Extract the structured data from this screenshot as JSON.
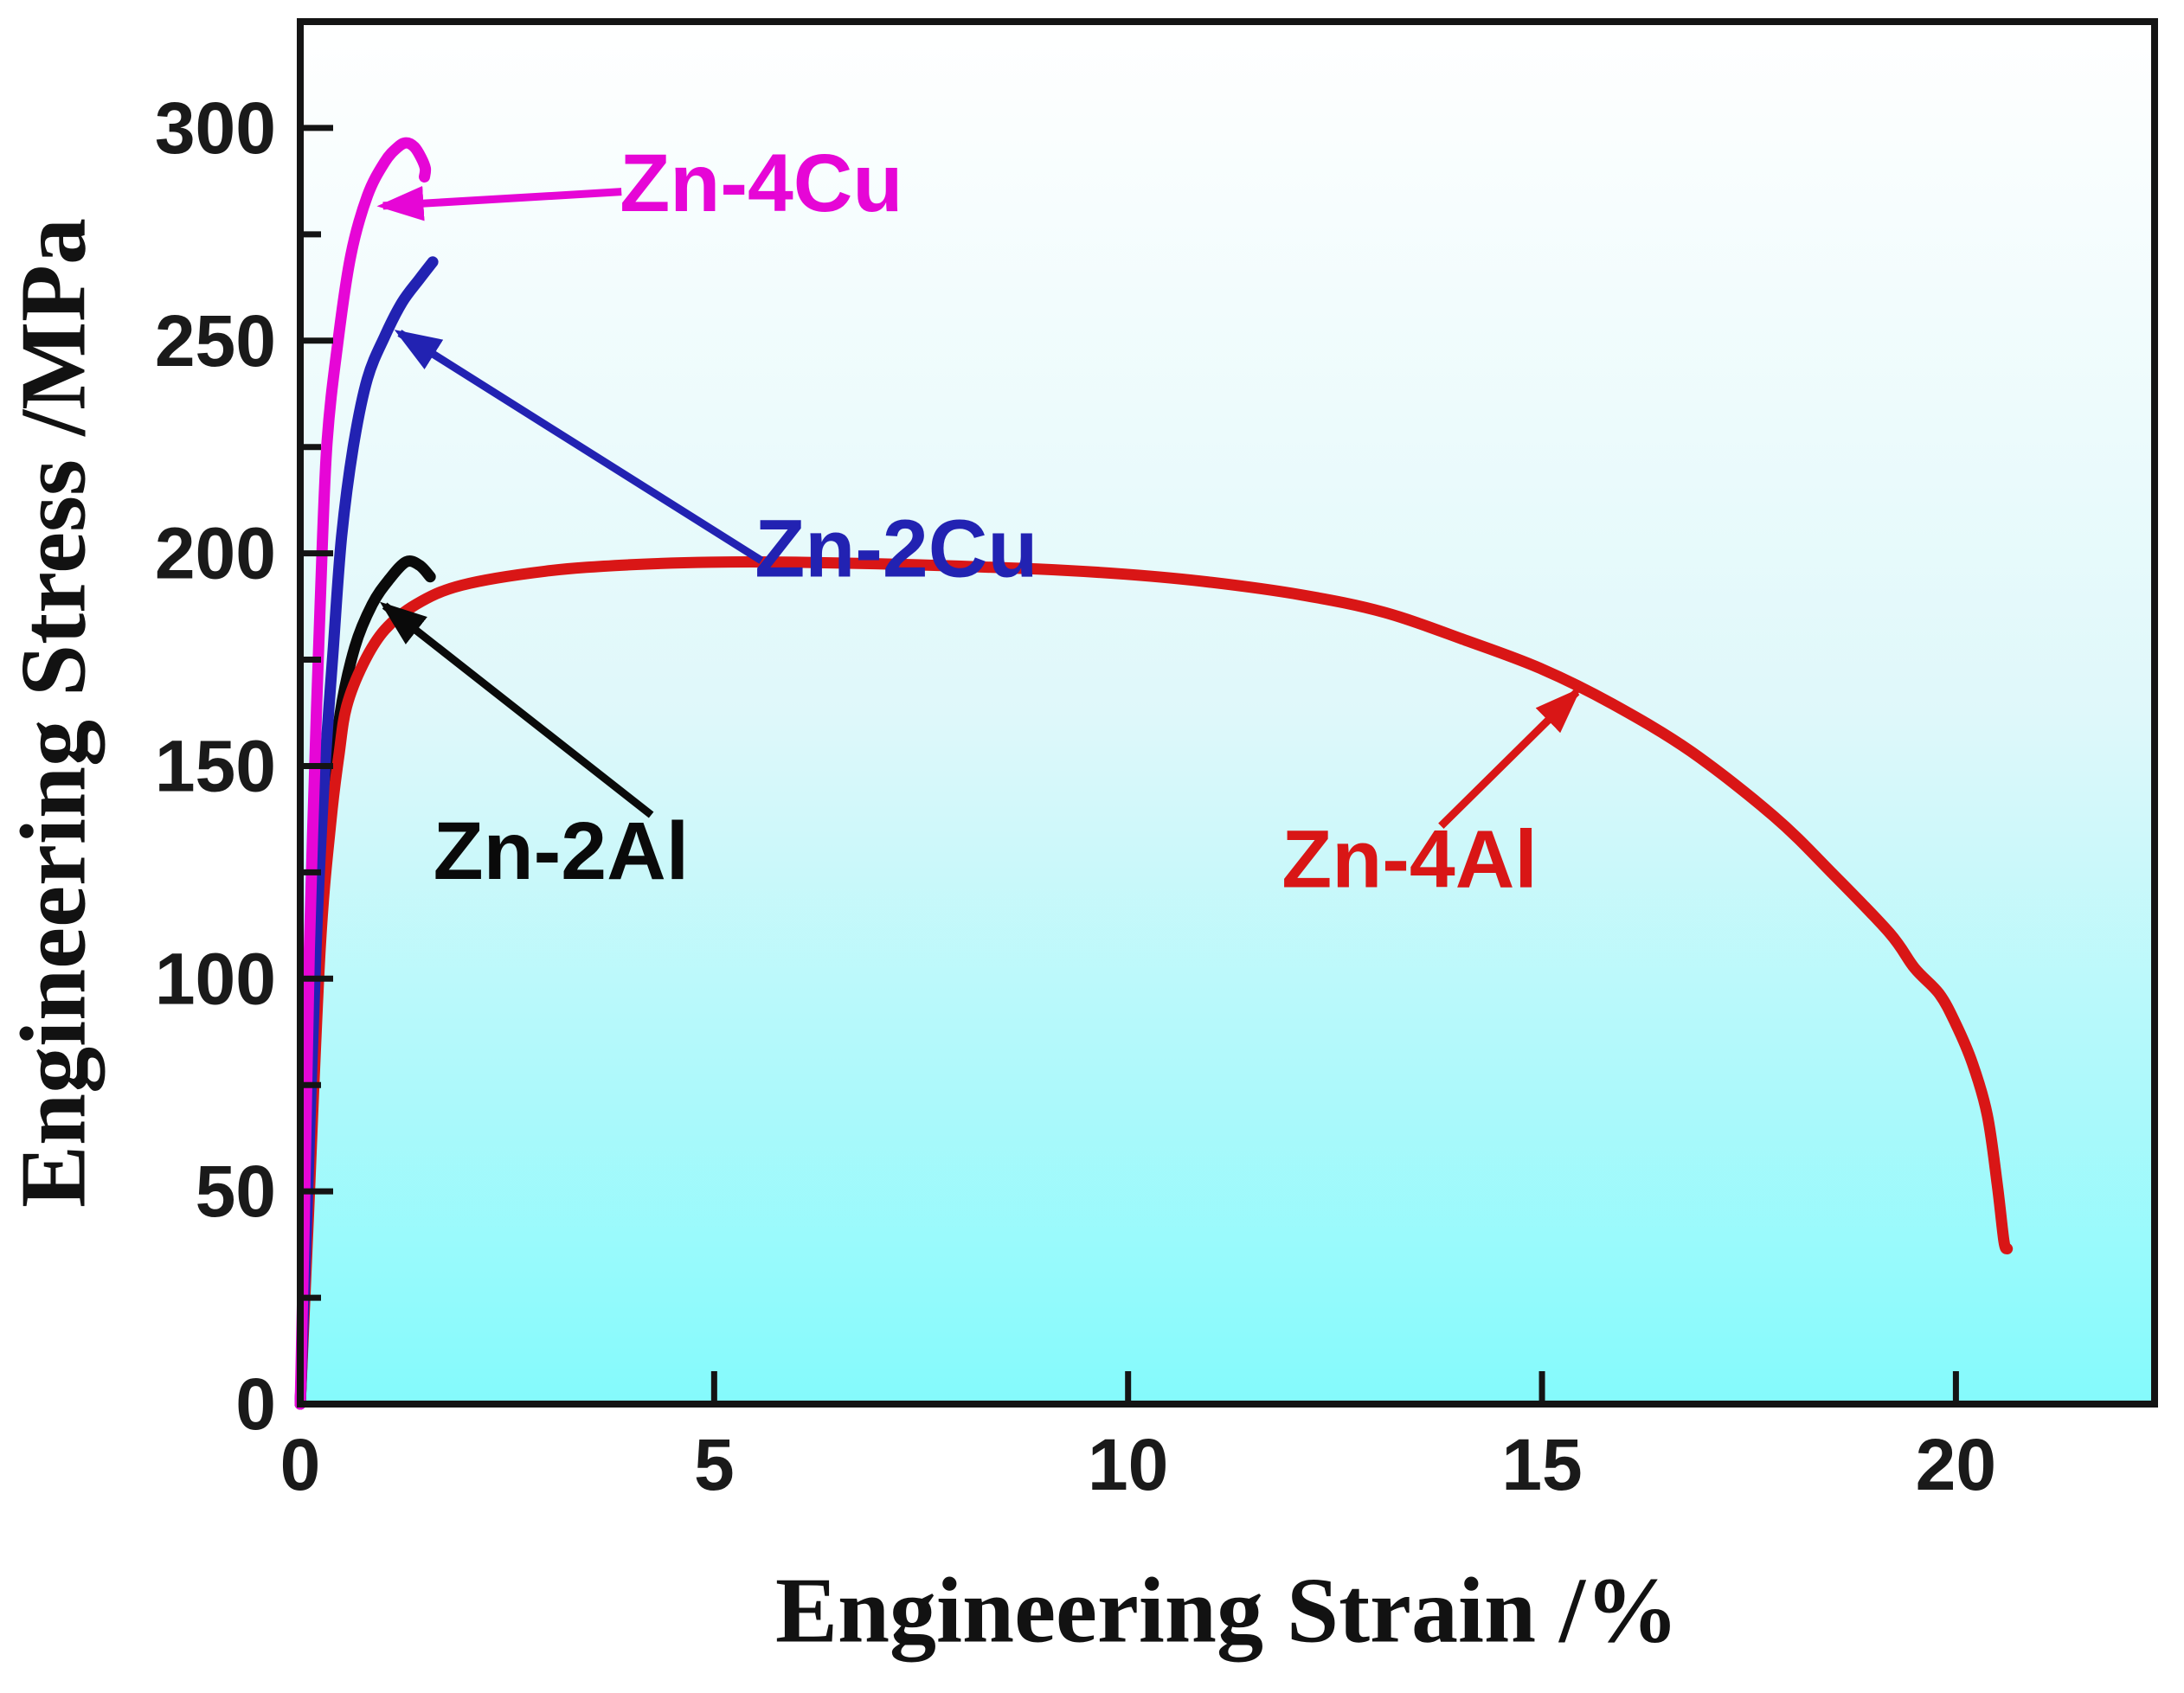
{
  "page": {
    "background": "#ffffff"
  },
  "chart_data": {
    "type": "line",
    "title": "",
    "xlabel": "Engineering Strain /%",
    "ylabel": "Engineering Stress /MPa",
    "xlim": [
      0,
      22.4
    ],
    "ylim": [
      0,
      325
    ],
    "grid": false,
    "legend_position": "inline-annotations",
    "frame_color": "#141414",
    "tick_label_color": "#1a1a1a",
    "background_gradient": {
      "top": "#ffffff",
      "mid": "#dff8fa",
      "bottom": "#84fafc"
    },
    "x_ticks": {
      "values": [
        0,
        5,
        10,
        15,
        20
      ],
      "labels": [
        "0",
        "5",
        "10",
        "15",
        "20"
      ],
      "minor": []
    },
    "y_ticks": {
      "values": [
        0,
        50,
        100,
        150,
        200,
        250,
        300
      ],
      "labels": [
        "0",
        "50",
        "100",
        "150",
        "200",
        "250",
        "300"
      ],
      "minor": [
        25,
        75,
        125,
        175,
        225,
        275
      ]
    },
    "series": [
      {
        "name": "Zn-2Al",
        "color": "#0a0a0a",
        "points": [
          [
            0,
            0
          ],
          [
            0.09,
            45
          ],
          [
            0.22,
            107
          ],
          [
            0.34,
            137
          ],
          [
            0.48,
            162
          ],
          [
            0.66,
            178
          ],
          [
            0.87,
            188
          ],
          [
            1.08,
            194
          ],
          [
            1.28,
            198
          ],
          [
            1.44,
            197.2
          ],
          [
            1.57,
            194.5
          ]
        ]
      },
      {
        "name": "Zn-4Al",
        "color": "#d91616",
        "points": [
          [
            0,
            0
          ],
          [
            0.1,
            45
          ],
          [
            0.24,
            107
          ],
          [
            0.37,
            137
          ],
          [
            0.47,
            153
          ],
          [
            0.56,
            164
          ],
          [
            0.76,
            174
          ],
          [
            1.02,
            182
          ],
          [
            1.4,
            188
          ],
          [
            1.95,
            192.5
          ],
          [
            2.96,
            195.8
          ],
          [
            3.97,
            197.3
          ],
          [
            4.96,
            197.9
          ],
          [
            5.99,
            197.9
          ],
          [
            7.45,
            197.3
          ],
          [
            8.91,
            196.3
          ],
          [
            9.96,
            195.1
          ],
          [
            11.0,
            193.2
          ],
          [
            12.1,
            190.2
          ],
          [
            13.1,
            186.1
          ],
          [
            14.1,
            179.4
          ],
          [
            15.0,
            172.8
          ],
          [
            15.85,
            164.6
          ],
          [
            16.8,
            153.4
          ],
          [
            17.8,
            138.2
          ],
          [
            18.5,
            124.9
          ],
          [
            19.2,
            110.7
          ],
          [
            19.5,
            102.5
          ],
          [
            19.8,
            96.4
          ],
          [
            20.0,
            89.3
          ],
          [
            20.2,
            80.1
          ],
          [
            20.38,
            67.9
          ],
          [
            20.5,
            51.6
          ],
          [
            20.58,
            38.3
          ],
          [
            20.62,
            36.5
          ]
        ]
      },
      {
        "name": "Zn-2Cu",
        "color": "#2222b2",
        "points": [
          [
            0,
            0
          ],
          [
            0.08,
            45
          ],
          [
            0.19,
            107
          ],
          [
            0.29,
            147
          ],
          [
            0.4,
            178
          ],
          [
            0.5,
            204
          ],
          [
            0.64,
            225
          ],
          [
            0.81,
            241
          ],
          [
            1.02,
            251
          ],
          [
            1.23,
            259
          ],
          [
            1.44,
            264.5
          ],
          [
            1.6,
            268.5
          ]
        ]
      },
      {
        "name": "Zn-4Cu",
        "color": "#e606d6",
        "points": [
          [
            0,
            0
          ],
          [
            0.05,
            45
          ],
          [
            0.11,
            107
          ],
          [
            0.17,
            147
          ],
          [
            0.24,
            188
          ],
          [
            0.32,
            225
          ],
          [
            0.45,
            249
          ],
          [
            0.61,
            270
          ],
          [
            0.81,
            284
          ],
          [
            1.02,
            292
          ],
          [
            1.18,
            295.5
          ],
          [
            1.28,
            296.5
          ],
          [
            1.38,
            295.5
          ],
          [
            1.46,
            293
          ],
          [
            1.51,
            290.5
          ],
          [
            1.5,
            288.5
          ]
        ]
      }
    ],
    "annotations": [
      {
        "text": "Zn-4Cu",
        "color": "#e606d6",
        "label_at": [
          5.57,
          287
        ],
        "arrow_from": [
          3.88,
          285
        ],
        "arrow_to": [
          1.0,
          281.7
        ]
      },
      {
        "text": "Zn-2Cu",
        "color": "#2222b2",
        "label_at": [
          7.2,
          201
        ],
        "arrow_from": [
          5.57,
          198.3
        ],
        "arrow_to": [
          1.2,
          251.8
        ]
      },
      {
        "text": "Zn-2Al",
        "color": "#0a0a0a",
        "label_at": [
          3.15,
          130
        ],
        "arrow_from": [
          4.24,
          138.5
        ],
        "arrow_to": [
          1.02,
          187.7
        ]
      },
      {
        "text": "Zn-4Al",
        "color": "#d91616",
        "label_at": [
          13.4,
          128
        ],
        "arrow_from": [
          13.78,
          135.9
        ],
        "arrow_to": [
          15.42,
          167.4
        ]
      }
    ]
  }
}
